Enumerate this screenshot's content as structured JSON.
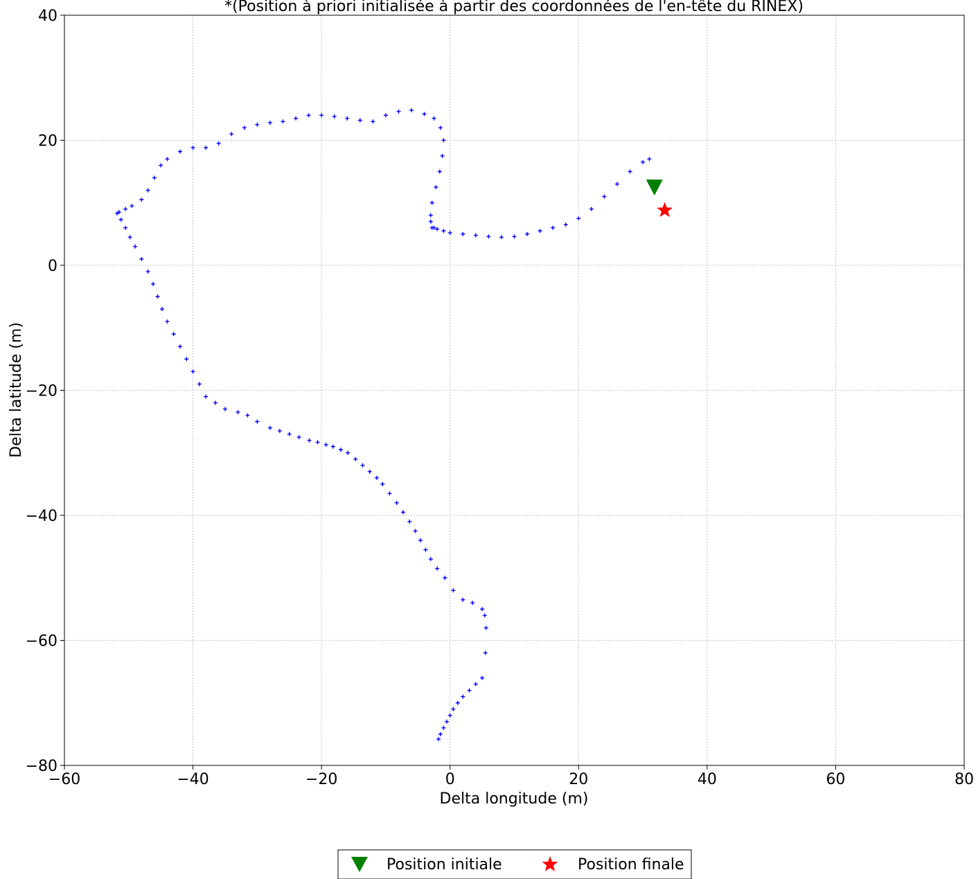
{
  "chart_data": {
    "type": "scatter",
    "title": "*(Position à priori initialisée à partir des coordonnées de l'en-tête du RINEX)",
    "xlabel": "Delta longitude (m)",
    "ylabel": "Delta latitude (m)",
    "xlim": [
      -60,
      80
    ],
    "ylim": [
      -80,
      40
    ],
    "xticks": [
      -60,
      -40,
      -20,
      0,
      20,
      40,
      60,
      80
    ],
    "yticks": [
      -80,
      -60,
      -40,
      -20,
      0,
      20,
      40
    ],
    "xtick_labels": [
      "−60",
      "−40",
      "−20",
      "0",
      "20",
      "40",
      "60",
      "80"
    ],
    "ytick_labels": [
      "−80",
      "−60",
      "−40",
      "−20",
      "0",
      "20",
      "40"
    ],
    "grid": true,
    "legend_placement": "bottom-center, below plot",
    "series": [
      {
        "marker": "plus",
        "color": "#0000ff",
        "x": [
          -1.8,
          -1.5,
          -1.0,
          -0.5,
          0.0,
          0.5,
          1.2,
          2.0,
          3.0,
          4.0,
          5.0,
          5.5,
          5.6,
          5.4,
          5.0,
          3.5,
          2.0,
          0.5,
          -0.8,
          -2.0,
          -3.0,
          -3.8,
          -4.6,
          -5.4,
          -6.3,
          -7.3,
          -8.3,
          -9.4,
          -10.5,
          -11.4,
          -12.5,
          -13.6,
          -14.7,
          -15.9,
          -17.0,
          -18.2,
          -19.3,
          -20.6,
          -21.9,
          -23.5,
          -25.0,
          -26.5,
          -28.0,
          -30.0,
          -31.5,
          -33.0,
          -35.0,
          -36.5,
          -38.0,
          -39.0,
          -40.0,
          -41.0,
          -42.0,
          -43.0,
          -44.0,
          -44.8,
          -45.5,
          -46.2,
          -47.0,
          -48.0,
          -49.0,
          -49.8,
          -50.5,
          -51.2,
          -51.8,
          -51.5,
          -50.5,
          -49.5,
          -48.0,
          -47.0,
          -46.0,
          -45.0,
          -44.0,
          -42.0,
          -40.0,
          -38.0,
          -36.0,
          -34.0,
          -32.0,
          -30.0,
          -28.0,
          -26.0,
          -24.0,
          -22.0,
          -20.0,
          -18.0,
          -16.0,
          -14.0,
          -12.0,
          -10.0,
          -8.0,
          -6.0,
          -4.0,
          -2.5,
          -1.5,
          -1.0,
          -1.2,
          -1.6,
          -2.2,
          -2.8,
          -3.0,
          -3.0,
          -2.8,
          -2.5,
          -2.0,
          -1.0,
          0.0,
          2.0,
          4.0,
          6.0,
          8.0,
          10.0,
          12.0,
          14.0,
          16.0,
          18.0,
          20.0,
          22.0,
          24.0,
          26.0,
          28.0,
          30.0,
          31.0,
          32.0
        ],
        "y": [
          -75.8,
          -75.0,
          -74.0,
          -73.0,
          -72.0,
          -71.0,
          -70.0,
          -69.0,
          -68.0,
          -67.0,
          -66.0,
          -62.0,
          -58.0,
          -56.0,
          -55.0,
          -54.0,
          -53.5,
          -52.0,
          -50.0,
          -48.5,
          -47.0,
          -45.5,
          -44.0,
          -42.5,
          -41.0,
          -39.5,
          -38.0,
          -36.5,
          -35.0,
          -34.0,
          -33.0,
          -32.0,
          -31.0,
          -30.0,
          -29.5,
          -29.0,
          -28.7,
          -28.3,
          -28.0,
          -27.5,
          -27.0,
          -26.5,
          -26.0,
          -25.0,
          -24.0,
          -23.5,
          -23.0,
          -22.0,
          -21.0,
          -19.0,
          -17.0,
          -15.0,
          -13.0,
          -11.0,
          -9.0,
          -7.0,
          -5.0,
          -3.0,
          -1.0,
          1.0,
          3.0,
          4.5,
          6.0,
          7.3,
          8.3,
          8.5,
          9.0,
          9.5,
          10.5,
          12.0,
          14.0,
          16.0,
          17.0,
          18.2,
          18.8,
          18.8,
          19.5,
          21.0,
          22.0,
          22.5,
          22.8,
          23.0,
          23.5,
          24.0,
          24.0,
          23.8,
          23.5,
          23.2,
          23.0,
          24.0,
          24.6,
          24.8,
          24.2,
          23.5,
          22.0,
          20.0,
          17.5,
          15.0,
          12.5,
          10.0,
          8.0,
          7.0,
          6.0,
          6.0,
          5.8,
          5.5,
          5.2,
          5.0,
          4.8,
          4.6,
          4.5,
          4.6,
          5.0,
          5.5,
          6.0,
          6.5,
          7.5,
          9.0,
          11.0,
          13.0,
          15.0,
          16.5,
          17.0,
          13.0
        ]
      },
      {
        "name": "Position initiale",
        "marker": "triangle-down",
        "color": "#008000",
        "x": [
          31.8
        ],
        "y": [
          12.5
        ]
      },
      {
        "name": "Position finale",
        "marker": "star",
        "color": "#ff0000",
        "x": [
          33.4
        ],
        "y": [
          8.8
        ]
      }
    ],
    "legend": [
      {
        "label": "Position initiale",
        "marker": "triangle-down",
        "color": "#008000"
      },
      {
        "label": "Position finale",
        "marker": "star",
        "color": "#ff0000"
      }
    ]
  }
}
